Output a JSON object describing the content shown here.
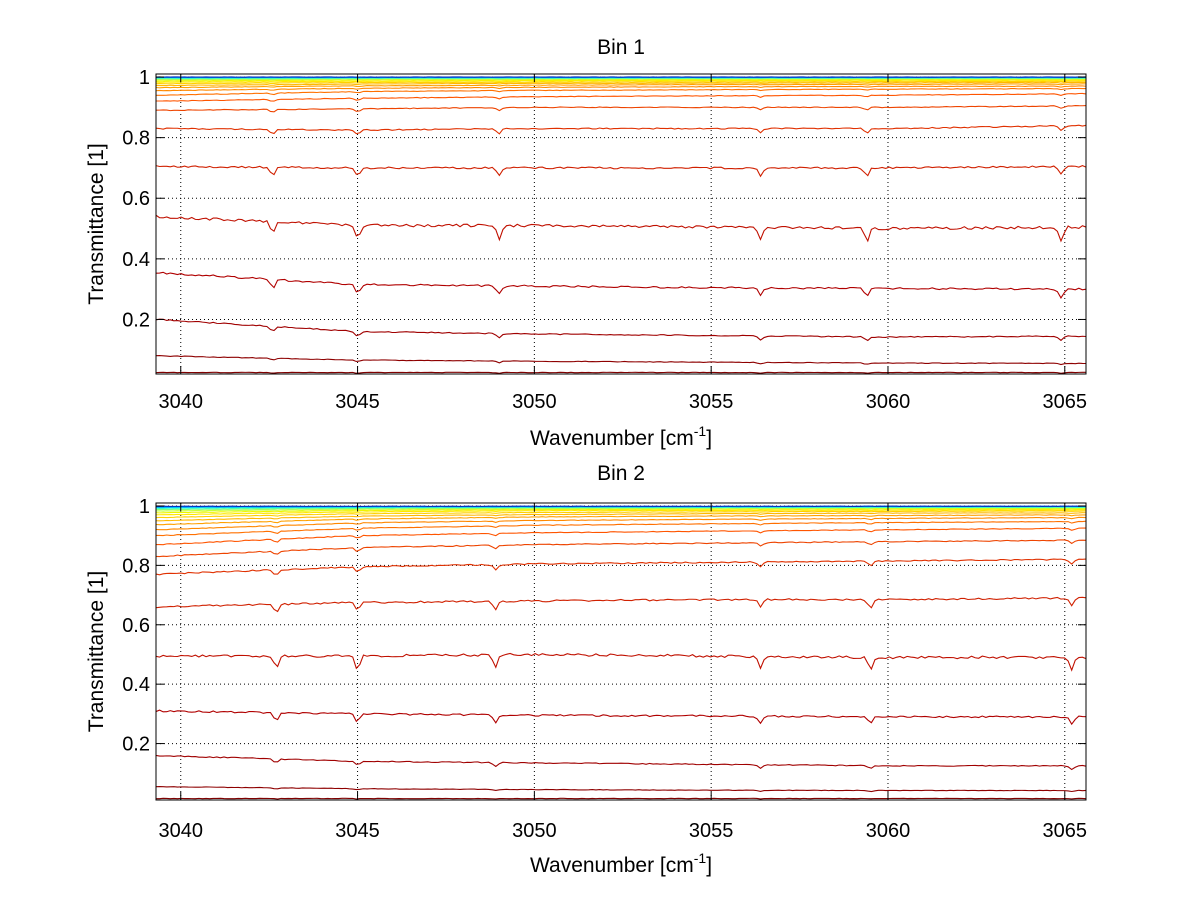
{
  "chart_data": [
    {
      "type": "line",
      "title": "Bin 1",
      "xlabel": "Wavenumber [cm",
      "xlabel_unit_power": "-1",
      "xlabel_close": "]",
      "ylabel": "Transmittance [1]",
      "xlim": [
        3039.3,
        3065.6
      ],
      "ylim": [
        0.02,
        1.01
      ],
      "x_ticks": [
        3040,
        3045,
        3050,
        3055,
        3060,
        3065
      ],
      "y_ticks": [
        0.2,
        0.4,
        0.6,
        0.8,
        1
      ],
      "y_tick_labels": [
        "0.2",
        "0.4",
        "0.6",
        "0.8",
        "1"
      ],
      "grid": true,
      "colormap": "jet",
      "dip_positions": [
        3042.6,
        3045.0,
        3049.0,
        3056.4,
        3059.4,
        3064.9
      ],
      "series": [
        {
          "x": [
            3039.3,
            3045,
            3050,
            3055,
            3060,
            3065.6
          ],
          "values": [
            0.025,
            0.025,
            0.025,
            0.025,
            0.025,
            0.025
          ],
          "color": "#7f0000"
        },
        {
          "x": [
            3039.3,
            3045,
            3050,
            3055,
            3060,
            3065.6
          ],
          "values": [
            0.08,
            0.066,
            0.062,
            0.059,
            0.056,
            0.055
          ],
          "color": "#8e0000"
        },
        {
          "x": [
            3039.3,
            3045,
            3050,
            3055,
            3060,
            3065.6
          ],
          "values": [
            0.2,
            0.16,
            0.152,
            0.147,
            0.142,
            0.145
          ],
          "color": "#a00000"
        },
        {
          "x": [
            3039.3,
            3045,
            3050,
            3055,
            3060,
            3065.6
          ],
          "values": [
            0.355,
            0.315,
            0.31,
            0.305,
            0.302,
            0.3
          ],
          "color": "#b00000"
        },
        {
          "x": [
            3039.3,
            3045,
            3050,
            3055,
            3060,
            3065.6
          ],
          "values": [
            0.54,
            0.51,
            0.51,
            0.505,
            0.5,
            0.505
          ],
          "color": "#c01000"
        },
        {
          "x": [
            3039.3,
            3045,
            3050,
            3055,
            3060,
            3065.6
          ],
          "values": [
            0.705,
            0.7,
            0.7,
            0.7,
            0.7,
            0.705
          ],
          "color": "#d02000"
        },
        {
          "x": [
            3039.3,
            3045,
            3050,
            3055,
            3060,
            3065.6
          ],
          "values": [
            0.83,
            0.825,
            0.83,
            0.83,
            0.83,
            0.84
          ],
          "color": "#e03000"
        },
        {
          "x": [
            3039.3,
            3045,
            3050,
            3055,
            3060,
            3065.6
          ],
          "values": [
            0.89,
            0.895,
            0.9,
            0.9,
            0.9,
            0.905
          ],
          "color": "#ee4400"
        },
        {
          "x": [
            3039.3,
            3045,
            3050,
            3055,
            3060,
            3065.6
          ],
          "values": [
            0.92,
            0.93,
            0.935,
            0.938,
            0.94,
            0.945
          ],
          "color": "#ff5500"
        },
        {
          "x": [
            3039.3,
            3045,
            3050,
            3055,
            3060,
            3065.6
          ],
          "values": [
            0.94,
            0.952,
            0.956,
            0.958,
            0.96,
            0.962
          ],
          "color": "#ff7000"
        },
        {
          "x": [
            3039.3,
            3045,
            3050,
            3055,
            3060,
            3065.6
          ],
          "values": [
            0.955,
            0.963,
            0.966,
            0.968,
            0.969,
            0.97
          ],
          "color": "#ff8800"
        },
        {
          "x": [
            3039.3,
            3045,
            3050,
            3055,
            3060,
            3065.6
          ],
          "values": [
            0.965,
            0.971,
            0.973,
            0.975,
            0.976,
            0.977
          ],
          "color": "#ffa000"
        },
        {
          "x": [
            3039.3,
            3045,
            3050,
            3055,
            3060,
            3065.6
          ],
          "values": [
            0.972,
            0.977,
            0.979,
            0.98,
            0.981,
            0.982
          ],
          "color": "#ffb800"
        },
        {
          "x": [
            3039.3,
            3045,
            3050,
            3055,
            3060,
            3065.6
          ],
          "values": [
            0.978,
            0.982,
            0.983,
            0.984,
            0.985,
            0.986
          ],
          "color": "#ffd000"
        },
        {
          "x": [
            3039.3,
            3045,
            3050,
            3055,
            3060,
            3065.6
          ],
          "values": [
            0.983,
            0.986,
            0.987,
            0.988,
            0.989,
            0.989
          ],
          "color": "#ffe800"
        },
        {
          "x": [
            3039.3,
            3045,
            3050,
            3055,
            3060,
            3065.6
          ],
          "values": [
            0.987,
            0.99,
            0.99,
            0.991,
            0.991,
            0.992
          ],
          "color": "#eef500"
        },
        {
          "x": [
            3039.3,
            3045,
            3050,
            3055,
            3060,
            3065.6
          ],
          "values": [
            0.991,
            0.993,
            0.993,
            0.994,
            0.994,
            0.994
          ],
          "color": "#c6ff3a"
        },
        {
          "x": [
            3039.3,
            3045,
            3050,
            3055,
            3060,
            3065.6
          ],
          "values": [
            0.994,
            0.995,
            0.995,
            0.996,
            0.996,
            0.996
          ],
          "color": "#7dff7d"
        },
        {
          "x": [
            3039.3,
            3045,
            3050,
            3055,
            3060,
            3065.6
          ],
          "values": [
            0.996,
            0.997,
            0.997,
            0.997,
            0.997,
            0.997
          ],
          "color": "#3affc6"
        },
        {
          "x": [
            3039.3,
            3045,
            3050,
            3055,
            3060,
            3065.6
          ],
          "values": [
            0.998,
            0.998,
            0.998,
            0.998,
            0.998,
            0.998
          ],
          "color": "#00d8ff"
        },
        {
          "x": [
            3039.3,
            3045,
            3050,
            3055,
            3060,
            3065.6
          ],
          "values": [
            0.999,
            0.999,
            0.999,
            0.999,
            0.999,
            0.999
          ],
          "color": "#0090ff"
        },
        {
          "x": [
            3039.3,
            3045,
            3050,
            3055,
            3060,
            3065.6
          ],
          "values": [
            1.0,
            1.0,
            1.0,
            1.0,
            1.0,
            1.0
          ],
          "color": "#0030c0"
        }
      ]
    },
    {
      "type": "line",
      "title": "Bin 2",
      "xlabel": "Wavenumber [cm",
      "xlabel_unit_power": "-1",
      "xlabel_close": "]",
      "ylabel": "Transmittance [1]",
      "xlim": [
        3039.3,
        3065.6
      ],
      "ylim": [
        0.01,
        1.01
      ],
      "x_ticks": [
        3040,
        3045,
        3050,
        3055,
        3060,
        3065
      ],
      "y_ticks": [
        0.2,
        0.4,
        0.6,
        0.8,
        1
      ],
      "y_tick_labels": [
        "0.2",
        "0.4",
        "0.6",
        "0.8",
        "1"
      ],
      "grid": true,
      "colormap": "jet",
      "dip_positions": [
        3042.7,
        3045.0,
        3048.9,
        3056.4,
        3059.5,
        3065.2
      ],
      "series": [
        {
          "x": [
            3039.3,
            3045,
            3050,
            3055,
            3060,
            3065.6
          ],
          "values": [
            0.015,
            0.015,
            0.015,
            0.015,
            0.015,
            0.015
          ],
          "color": "#7f0000"
        },
        {
          "x": [
            3039.3,
            3045,
            3050,
            3055,
            3060,
            3065.6
          ],
          "values": [
            0.055,
            0.048,
            0.045,
            0.043,
            0.042,
            0.042
          ],
          "color": "#8e0000"
        },
        {
          "x": [
            3039.3,
            3045,
            3050,
            3055,
            3060,
            3065.6
          ],
          "values": [
            0.16,
            0.14,
            0.135,
            0.13,
            0.125,
            0.125
          ],
          "color": "#a00000"
        },
        {
          "x": [
            3039.3,
            3045,
            3050,
            3055,
            3060,
            3065.6
          ],
          "values": [
            0.31,
            0.3,
            0.295,
            0.293,
            0.29,
            0.29
          ],
          "color": "#b00000"
        },
        {
          "x": [
            3039.3,
            3045,
            3050,
            3055,
            3060,
            3065.6
          ],
          "values": [
            0.495,
            0.495,
            0.5,
            0.495,
            0.49,
            0.49
          ],
          "color": "#c01000"
        },
        {
          "x": [
            3039.3,
            3045,
            3050,
            3055,
            3060,
            3065.6
          ],
          "values": [
            0.66,
            0.675,
            0.68,
            0.685,
            0.685,
            0.69
          ],
          "color": "#d02000"
        },
        {
          "x": [
            3039.3,
            3045,
            3050,
            3055,
            3060,
            3065.6
          ],
          "values": [
            0.77,
            0.795,
            0.805,
            0.81,
            0.815,
            0.82
          ],
          "color": "#e03000"
        },
        {
          "x": [
            3039.3,
            3045,
            3050,
            3055,
            3060,
            3065.6
          ],
          "values": [
            0.83,
            0.86,
            0.87,
            0.875,
            0.88,
            0.885
          ],
          "color": "#ee4400"
        },
        {
          "x": [
            3039.3,
            3045,
            3050,
            3055,
            3060,
            3065.6
          ],
          "values": [
            0.87,
            0.9,
            0.91,
            0.915,
            0.92,
            0.925
          ],
          "color": "#ff5500"
        },
        {
          "x": [
            3039.3,
            3045,
            3050,
            3055,
            3060,
            3065.6
          ],
          "values": [
            0.9,
            0.925,
            0.935,
            0.94,
            0.944,
            0.948
          ],
          "color": "#ff7000"
        },
        {
          "x": [
            3039.3,
            3045,
            3050,
            3055,
            3060,
            3065.6
          ],
          "values": [
            0.92,
            0.943,
            0.951,
            0.955,
            0.958,
            0.961
          ],
          "color": "#ff8800"
        },
        {
          "x": [
            3039.3,
            3045,
            3050,
            3055,
            3060,
            3065.6
          ],
          "values": [
            0.937,
            0.956,
            0.963,
            0.966,
            0.968,
            0.97
          ],
          "color": "#ffa000"
        },
        {
          "x": [
            3039.3,
            3045,
            3050,
            3055,
            3060,
            3065.6
          ],
          "values": [
            0.95,
            0.966,
            0.971,
            0.974,
            0.976,
            0.977
          ],
          "color": "#ffb800"
        },
        {
          "x": [
            3039.3,
            3045,
            3050,
            3055,
            3060,
            3065.6
          ],
          "values": [
            0.961,
            0.974,
            0.978,
            0.98,
            0.982,
            0.983
          ],
          "color": "#ffd000"
        },
        {
          "x": [
            3039.3,
            3045,
            3050,
            3055,
            3060,
            3065.6
          ],
          "values": [
            0.97,
            0.98,
            0.984,
            0.985,
            0.986,
            0.987
          ],
          "color": "#ffe800"
        },
        {
          "x": [
            3039.3,
            3045,
            3050,
            3055,
            3060,
            3065.6
          ],
          "values": [
            0.977,
            0.985,
            0.988,
            0.989,
            0.99,
            0.99
          ],
          "color": "#eef500"
        },
        {
          "x": [
            3039.3,
            3045,
            3050,
            3055,
            3060,
            3065.6
          ],
          "values": [
            0.983,
            0.989,
            0.991,
            0.992,
            0.993,
            0.993
          ],
          "color": "#c6ff3a"
        },
        {
          "x": [
            3039.3,
            3045,
            3050,
            3055,
            3060,
            3065.6
          ],
          "values": [
            0.988,
            0.992,
            0.994,
            0.994,
            0.995,
            0.995
          ],
          "color": "#7dff7d"
        },
        {
          "x": [
            3039.3,
            3045,
            3050,
            3055,
            3060,
            3065.6
          ],
          "values": [
            0.992,
            0.995,
            0.996,
            0.996,
            0.996,
            0.996
          ],
          "color": "#3affc6"
        },
        {
          "x": [
            3039.3,
            3045,
            3050,
            3055,
            3060,
            3065.6
          ],
          "values": [
            0.995,
            0.997,
            0.997,
            0.997,
            0.998,
            0.998
          ],
          "color": "#00d8ff"
        },
        {
          "x": [
            3039.3,
            3045,
            3050,
            3055,
            3060,
            3065.6
          ],
          "values": [
            0.997,
            0.998,
            0.998,
            0.998,
            0.999,
            0.999
          ],
          "color": "#0090ff"
        },
        {
          "x": [
            3039.3,
            3045,
            3050,
            3055,
            3060,
            3065.6
          ],
          "values": [
            0.999,
            0.999,
            0.999,
            0.999,
            0.999,
            0.999
          ],
          "color": "#0030c0"
        }
      ]
    }
  ]
}
